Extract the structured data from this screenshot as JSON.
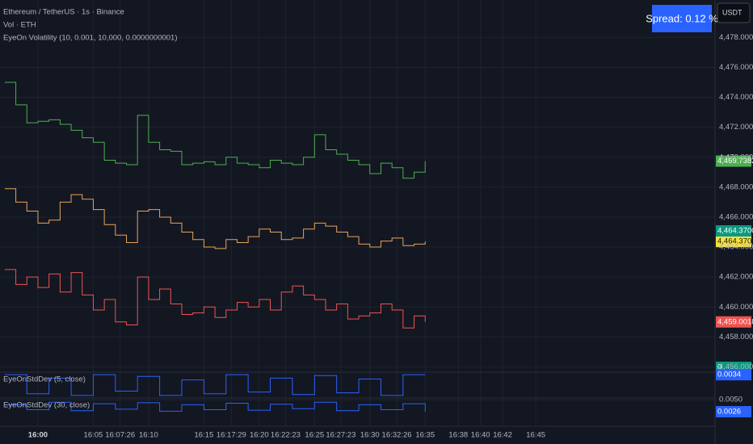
{
  "header": {
    "title": "Ethereum / TetherUS · 1s · Binance",
    "line2": "Vol · ETH",
    "line3": "EyeOn Volatility (10, 0.001, 10,000, 0.0000000001)",
    "spread": "Spread: 0.12 %",
    "currency": "USDT"
  },
  "chart_data": [
    {
      "type": "line",
      "name": "price",
      "x": [
        -3,
        -2,
        -1,
        0,
        1,
        2,
        3,
        4,
        5,
        6,
        7,
        8,
        9,
        10,
        11,
        12,
        13,
        14,
        15,
        16,
        17,
        18,
        19,
        20,
        21,
        22,
        23,
        24,
        25,
        26,
        27,
        28,
        29,
        30,
        31,
        32,
        33,
        34,
        35
      ],
      "series": [
        {
          "color": "#4caf50",
          "last_label": "4,469.7382",
          "values": [
            4475.0,
            4473.5,
            4472.3,
            4472.4,
            4472.5,
            4472.2,
            4471.8,
            4471.3,
            4471.0,
            4469.8,
            4469.6,
            4469.5,
            4472.8,
            4471.0,
            4470.5,
            4470.4,
            4469.5,
            4469.6,
            4469.7,
            4469.5,
            4470.0,
            4469.6,
            4469.5,
            4469.3,
            4469.8,
            4469.6,
            4469.5,
            4470.0,
            4471.5,
            4470.5,
            4470.2,
            4469.8,
            4469.5,
            4468.9,
            4469.6,
            4469.3,
            4468.6,
            4469.0,
            4469.74
          ]
        },
        {
          "color": "#e8a35a",
          "last_label": "4,464.3700",
          "badge_color": "#f7e03c",
          "values": [
            4467.9,
            4467.0,
            4466.4,
            4465.6,
            4465.8,
            4467.0,
            4467.5,
            4467.2,
            4466.5,
            4465.5,
            4464.8,
            4464.3,
            4466.4,
            4466.5,
            4466.0,
            4465.6,
            4465.0,
            4464.5,
            4464.0,
            4463.9,
            4464.5,
            4464.3,
            4464.7,
            4465.2,
            4465.0,
            4464.5,
            4464.6,
            4465.2,
            4465.6,
            4465.4,
            4465.0,
            4464.7,
            4464.2,
            4464.0,
            4464.4,
            4464.6,
            4464.1,
            4464.2,
            4464.37
          ]
        },
        {
          "color": "#ef5350",
          "last_label": "4,459.0018",
          "values": [
            4462.5,
            4461.5,
            4462.0,
            4461.3,
            4462.2,
            4461.0,
            4462.3,
            4460.8,
            4459.8,
            4460.5,
            4459.0,
            4458.8,
            4462.0,
            4460.5,
            4461.2,
            4460.2,
            4459.5,
            4459.6,
            4460.0,
            4459.3,
            4459.8,
            4460.3,
            4460.0,
            4460.5,
            4459.8,
            4461.0,
            4461.4,
            4460.8,
            4460.5,
            4459.8,
            4460.2,
            4459.2,
            4459.4,
            4459.6,
            4460.2,
            4459.8,
            4458.6,
            4459.4,
            4459.0
          ]
        }
      ],
      "annotations": [
        {
          "text": "4,464.3700",
          "color": "#089981"
        },
        {
          "text": "0",
          "color": "#089981"
        }
      ],
      "xlim": [
        -3.43,
        61.2
      ],
      "ylim": [
        4455.7,
        4480.5
      ],
      "yticks": [
        {
          "value": 4456,
          "label": "4,456.0000"
        },
        {
          "value": 4458,
          "label": "4,458.0000"
        },
        {
          "value": 4460,
          "label": "4,460.0000"
        },
        {
          "value": 4462,
          "label": "4,462.0000"
        },
        {
          "value": 4464,
          "label": "4,464.0000"
        },
        {
          "value": 4466,
          "label": "4,466.0000"
        },
        {
          "value": 4468,
          "label": "4,468.0000"
        },
        {
          "value": 4470,
          "label": "4,470.0000"
        },
        {
          "value": 4472,
          "label": "4,472.0000"
        },
        {
          "value": 4474,
          "label": "4,474.0000"
        },
        {
          "value": 4476,
          "label": "4,476.0000"
        },
        {
          "value": 4478,
          "label": "4,478.0000"
        }
      ],
      "xticks": [
        {
          "value": 0,
          "label": "16:00"
        },
        {
          "value": 5,
          "label": "16:05"
        },
        {
          "value": 7.43,
          "label": "16:07:26"
        },
        {
          "value": 10,
          "label": "16:10"
        },
        {
          "value": 15,
          "label": "16:15"
        },
        {
          "value": 17.48,
          "label": "16:17:29"
        },
        {
          "value": 20,
          "label": "16:20"
        },
        {
          "value": 22.38,
          "label": "16:22:23"
        },
        {
          "value": 25,
          "label": "16:25"
        },
        {
          "value": 27.38,
          "label": "16:27:23"
        },
        {
          "value": 30,
          "label": "16:30"
        },
        {
          "value": 32.43,
          "label": "16:32:26"
        },
        {
          "value": 35,
          "label": "16:35"
        },
        {
          "value": 38,
          "label": "16:38"
        },
        {
          "value": 40,
          "label": "16:40"
        },
        {
          "value": 42,
          "label": "16:42"
        },
        {
          "value": 45,
          "label": "16:45"
        }
      ],
      "grid": true
    },
    {
      "type": "line",
      "title": "EyeOnStdDev (5, close)",
      "x": [
        -3,
        -1,
        1,
        3,
        5,
        7,
        9,
        11,
        13,
        15,
        17,
        19,
        21,
        23,
        25,
        27,
        29,
        31,
        33,
        35
      ],
      "series": [
        {
          "color": "#2962ff",
          "last_label": "0.0034",
          "values": [
            0.0034,
            0.0012,
            0.003,
            0.001,
            0.0034,
            0.0015,
            0.0032,
            0.001,
            0.0028,
            0.0012,
            0.0034,
            0.0014,
            0.003,
            0.0011,
            0.0033,
            0.0013,
            0.0029,
            0.001,
            0.0034,
            0.0034
          ]
        }
      ],
      "xlim": [
        -3.43,
        61.2
      ],
      "ylim": [
        0.0008,
        0.0036
      ],
      "yticks": []
    },
    {
      "type": "line",
      "title": "EyeOnStdDev (30, close)",
      "x": [
        -3,
        -1,
        1,
        3,
        5,
        7,
        9,
        11,
        13,
        15,
        17,
        19,
        21,
        23,
        25,
        27,
        29,
        31,
        33,
        35
      ],
      "series": [
        {
          "color": "#2962ff",
          "last_label": "0.0026",
          "values": [
            0.004,
            0.003,
            0.0045,
            0.0028,
            0.0042,
            0.0031,
            0.0044,
            0.0027,
            0.004,
            0.003,
            0.0043,
            0.0029,
            0.0041,
            0.0032,
            0.0045,
            0.0028,
            0.004,
            0.003,
            0.0042,
            0.0026
          ]
        }
      ],
      "xlim": [
        -3.43,
        61.2
      ],
      "ylim": [
        0,
        0.0052
      ],
      "yticks": [
        {
          "value": 0.005,
          "label": "0.0050"
        }
      ]
    }
  ]
}
